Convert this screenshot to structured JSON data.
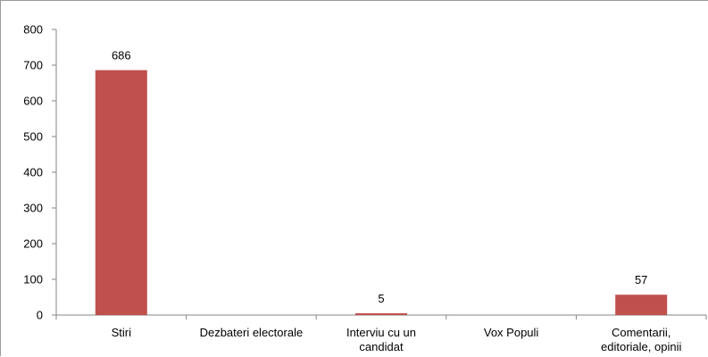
{
  "chart_data": {
    "type": "bar",
    "categories": [
      "Stiri",
      "Dezbateri electorale",
      "Interviu cu un candidat",
      "Vox Populi",
      "Comentarii, editoriale, opinii"
    ],
    "category_lines": [
      [
        "Stiri"
      ],
      [
        "Dezbateri electorale"
      ],
      [
        "Interviu cu un",
        "candidat"
      ],
      [
        "Vox Populi"
      ],
      [
        "Comentarii,",
        "editoriale, opinii"
      ]
    ],
    "values": [
      686,
      null,
      5,
      null,
      57
    ],
    "data_labels": [
      "686",
      "",
      "5",
      "",
      "57"
    ],
    "ylim": [
      0,
      800
    ],
    "yticks": [
      0,
      100,
      200,
      300,
      400,
      500,
      600,
      700,
      800
    ],
    "grid": false,
    "legend": "none",
    "title": "",
    "xlabel": "",
    "ylabel": "",
    "bar_color": "#C0504D",
    "axis_color": "#868686"
  }
}
